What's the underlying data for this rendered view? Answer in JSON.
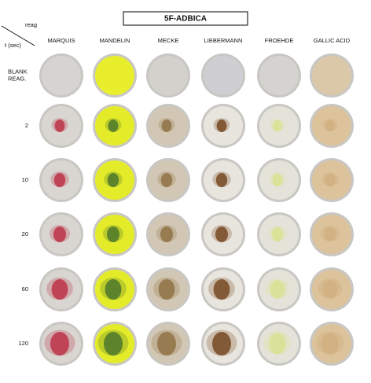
{
  "header": {
    "title": "5F-ADBICA",
    "corner_top": "reag",
    "corner_bottom": "t (sec)"
  },
  "columns": [
    "MARQUIS",
    "MANDELIN",
    "MECKE",
    "LIEBERMANN",
    "FROEHDE",
    "GALLIC ACID"
  ],
  "rows": [
    [
      "BLANK",
      "REAG."
    ],
    [
      "2"
    ],
    [
      "10"
    ],
    [
      "20"
    ],
    [
      "60"
    ],
    [
      "120"
    ]
  ]
}
